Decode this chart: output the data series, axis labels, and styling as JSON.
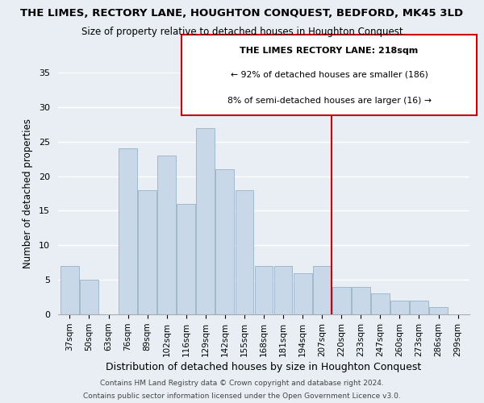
{
  "title": "THE LIMES, RECTORY LANE, HOUGHTON CONQUEST, BEDFORD, MK45 3LD",
  "subtitle": "Size of property relative to detached houses in Houghton Conquest",
  "xlabel": "Distribution of detached houses by size in Houghton Conquest",
  "ylabel": "Number of detached properties",
  "bin_labels": [
    "37sqm",
    "50sqm",
    "63sqm",
    "76sqm",
    "89sqm",
    "102sqm",
    "116sqm",
    "129sqm",
    "142sqm",
    "155sqm",
    "168sqm",
    "181sqm",
    "194sqm",
    "207sqm",
    "220sqm",
    "233sqm",
    "247sqm",
    "260sqm",
    "273sqm",
    "286sqm",
    "299sqm"
  ],
  "bar_heights": [
    7,
    5,
    0,
    24,
    18,
    23,
    16,
    27,
    21,
    18,
    7,
    7,
    6,
    7,
    4,
    4,
    3,
    2,
    2,
    1,
    0
  ],
  "bar_color": "#c8d8e8",
  "bar_edge_color": "#a0b8cc",
  "vline_x_idx": 14,
  "vline_color": "#cc0000",
  "annotation_title": "THE LIMES RECTORY LANE: 218sqm",
  "annotation_line1": "← 92% of detached houses are smaller (186)",
  "annotation_line2": "8% of semi-detached houses are larger (16) →",
  "ylim": [
    0,
    35
  ],
  "yticks": [
    0,
    5,
    10,
    15,
    20,
    25,
    30,
    35
  ],
  "footer1": "Contains HM Land Registry data © Crown copyright and database right 2024.",
  "footer2": "Contains public sector information licensed under the Open Government Licence v3.0.",
  "background_color": "#e8eef4",
  "plot_background": "#e8eef4"
}
